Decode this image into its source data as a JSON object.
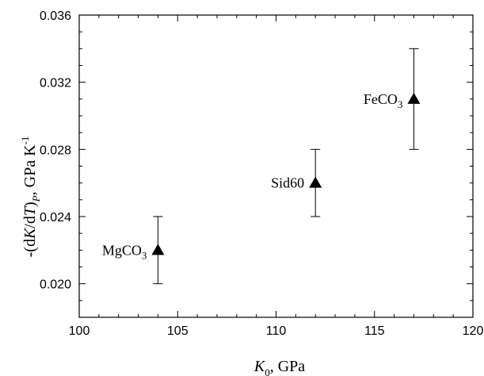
{
  "chart_data": {
    "type": "scatter",
    "xlabel": "K0, GPa",
    "ylabel": "-(dK/dT)P, GPa K-1",
    "xlim": [
      100,
      120
    ],
    "ylim": [
      0.018,
      0.036
    ],
    "x_ticks": [
      100,
      105,
      110,
      115,
      120
    ],
    "x_tick_labels": [
      "100",
      "105",
      "110",
      "115",
      "120"
    ],
    "y_ticks": [
      0.02,
      0.024,
      0.028,
      0.032,
      0.036
    ],
    "y_tick_labels": [
      "0.020",
      "0.024",
      "0.028",
      "0.032",
      "0.036"
    ],
    "grid": false,
    "points": [
      {
        "label": "MgCO3",
        "x": 104,
        "y": 0.022,
        "yerr_low": 0.02,
        "yerr_high": 0.024,
        "label_side": "left"
      },
      {
        "label": "Sid60",
        "x": 112,
        "y": 0.026,
        "yerr_low": 0.024,
        "yerr_high": 0.028,
        "label_side": "left"
      },
      {
        "label": "FeCO3",
        "x": 117,
        "y": 0.031,
        "yerr_low": 0.028,
        "yerr_high": 0.034,
        "label_side": "left"
      }
    ],
    "marker": "filled-triangle",
    "marker_color": "#000000"
  }
}
